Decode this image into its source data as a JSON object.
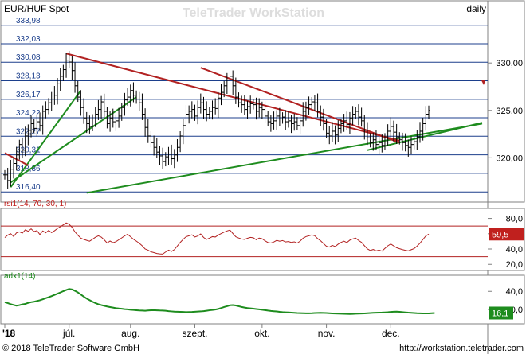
{
  "header": {
    "title": "EUR/HUF Spot",
    "watermark": "TeleTrader WorkStation",
    "period": "daily"
  },
  "footer": {
    "copyright": "© 2018 TeleTrader Software GmbH",
    "url": "http://workstation.teletrader.com"
  },
  "colors": {
    "price": "#000000",
    "green": "#1e8c1e",
    "red_trend": "#b22222",
    "rsi": "#b22222",
    "adx": "#1e8c1e",
    "level_line": "#1c3f8c",
    "badge_rsi": "#c0201e",
    "badge_adx": "#1e8c1e"
  },
  "chart_data": [
    {
      "type": "line",
      "title": "EUR/HUF Spot",
      "x_labels": [
        "'18",
        "júl.",
        "aug.",
        "szept.",
        "okt.",
        "nov.",
        "dec."
      ],
      "yticks_right": [
        "330,00",
        "325,00",
        "320,00"
      ],
      "ylim": [
        316.0,
        334.8
      ],
      "grid": false,
      "levels": [
        {
          "value": 333.98,
          "label": "333,98"
        },
        {
          "value": 332.03,
          "label": "332,03"
        },
        {
          "value": 330.08,
          "label": "330,08"
        },
        {
          "value": 328.13,
          "label": "328,13"
        },
        {
          "value": 326.17,
          "label": "326,17"
        },
        {
          "value": 324.22,
          "label": "324,22"
        },
        {
          "value": 322.27,
          "label": "322,27"
        },
        {
          "value": 320.31,
          "label": "320,31"
        },
        {
          "value": 318.36,
          "label": "318,36"
        },
        {
          "value": 316.4,
          "label": "316,40"
        }
      ],
      "series": [
        {
          "values": [
            318.2,
            317.6,
            318.8,
            319.4,
            320.3,
            321.4,
            320.8,
            322.3,
            322.9,
            323.6,
            323.1,
            323.8,
            323.4,
            324.9,
            325.1,
            325.8,
            326.2,
            326.6,
            327.8,
            328.6,
            329.3,
            330.3,
            330.1,
            329.2,
            327.6,
            326.4,
            325.3,
            324.2,
            323.6,
            323.3,
            324.1,
            324.6,
            325.1,
            325.9,
            324.9,
            323.6,
            324.2,
            323.8,
            323.9,
            324.4,
            325.3,
            326.1,
            326.4,
            327.1,
            326.6,
            326.2,
            325.8,
            324.6,
            323.2,
            322.3,
            321.6,
            321.1,
            320.6,
            320.2,
            319.6,
            320.1,
            320.4,
            319.9,
            320.3,
            321.1,
            322.3,
            323.4,
            324.6,
            324.9,
            325.1,
            324.4,
            325.3,
            325.8,
            325.1,
            324.6,
            324.9,
            325.3,
            325.2,
            326.3,
            326.9,
            327.6,
            328.2,
            328.6,
            327.6,
            326.4,
            325.8,
            325.6,
            325.1,
            325.4,
            325.7,
            325.6,
            324.9,
            325.3,
            325.1,
            324.4,
            323.8,
            323.6,
            323.9,
            324.4,
            324.1,
            324.3,
            323.8,
            323.9,
            323.6,
            323.8,
            323.4,
            323.9,
            324.9,
            325.3,
            325.6,
            325.9,
            325.8,
            324.9,
            324.3,
            323.6,
            322.6,
            322.3,
            322.8,
            322.4,
            323.1,
            323.6,
            323.9,
            323.5,
            324.2,
            324.6,
            324.9,
            324.3,
            323.9,
            322.9,
            322.1,
            321.6,
            321.9,
            321.4,
            321.6,
            321.3,
            322.1,
            322.8,
            323.3,
            322.7,
            322.2,
            321.9,
            321.6,
            321.3,
            321.1,
            321.4,
            321.7,
            322.2,
            322.8,
            323.6,
            324.6,
            325.0
          ]
        }
      ],
      "trendlines": [
        {
          "name": "green-support-main",
          "color": "green",
          "from": {
            "i": 28,
            "v": 316.3
          },
          "to": {
            "i": 163,
            "v": 323.6
          }
        },
        {
          "name": "green-support-short-1",
          "color": "green",
          "from": {
            "i": 2,
            "v": 316.9
          },
          "to": {
            "i": 26,
            "v": 327.1
          }
        },
        {
          "name": "green-support-short-2",
          "color": "green",
          "from": {
            "i": 2,
            "v": 317.4
          },
          "to": {
            "i": 45,
            "v": 326.4
          }
        },
        {
          "name": "green-support-right",
          "color": "green",
          "from": {
            "i": 124,
            "v": 320.8
          },
          "to": {
            "i": 163,
            "v": 323.7
          }
        },
        {
          "name": "red-resistance-left",
          "color": "red_trend",
          "from": {
            "i": 21,
            "v": 331.0
          },
          "to": {
            "i": 135,
            "v": 321.8
          }
        },
        {
          "name": "red-resistance-right",
          "color": "red_trend",
          "from": {
            "i": 67,
            "v": 329.5
          },
          "to": {
            "i": 135,
            "v": 321.6
          }
        },
        {
          "name": "red-resistance-start",
          "color": "red_trend",
          "from": {
            "i": 0,
            "v": 320.5
          },
          "to": {
            "i": 8,
            "v": 319.2
          }
        }
      ]
    },
    {
      "type": "line",
      "title": "rsi1(14, 70, 30, 1)",
      "yticks_right": [
        "80,0",
        "60,0",
        "40,0",
        "20,0"
      ],
      "ylim": [
        14,
        91
      ],
      "bands": [
        70,
        30
      ],
      "last_value": "59,5",
      "series": [
        {
          "values": [
            55.0,
            58.2,
            60.1,
            56.4,
            61.2,
            62.5,
            60.8,
            65.1,
            63.2,
            66.4,
            62.8,
            64.1,
            58.9,
            63.6,
            61.2,
            64.3,
            61.5,
            63.9,
            66.8,
            69.2,
            71.5,
            74.1,
            72.3,
            68.5,
            62.4,
            58.1,
            54.2,
            52.6,
            51.3,
            50.2,
            52.7,
            55.4,
            57.3,
            55.6,
            52.1,
            47.8,
            50.5,
            48.3,
            49.6,
            52.1,
            54.6,
            57.2,
            59.3,
            56.1,
            52.8,
            50.3,
            47.6,
            44.2,
            40.1,
            38.5,
            36.4,
            35.3,
            34.2,
            33.6,
            33.4,
            36.1,
            38.5,
            36.8,
            39.2,
            43.8,
            48.6,
            52.7,
            56.1,
            57.3,
            58.6,
            55.7,
            57.1,
            59.7,
            55.1,
            52.6,
            54.3,
            56.2,
            55.7,
            58.3,
            60.2,
            62.1,
            63.6,
            64.8,
            60.3,
            56.1,
            54.4,
            53.2,
            52.5,
            54.1,
            55.2,
            54.7,
            52.1,
            54.3,
            53.4,
            50.7,
            48.5,
            47.8,
            49.2,
            51.3,
            50.2,
            51.1,
            49.3,
            49.8,
            48.6,
            49.4,
            47.7,
            50.3,
            54.1,
            56.2,
            57.3,
            58.5,
            57.4,
            53.6,
            50.8,
            47.2,
            43.6,
            42.5,
            44.8,
            43.2,
            46.3,
            48.7,
            50.2,
            48.4,
            51.6,
            53.2,
            54.3,
            51.2,
            48.7,
            44.3,
            40.2,
            38.1,
            39.4,
            37.6,
            38.6,
            37.2,
            40.8,
            44.2,
            46.6,
            44.1,
            41.7,
            40.4,
            39.2,
            38.3,
            37.6,
            39.1,
            40.6,
            43.8,
            47.6,
            52.4,
            57.1,
            59.5
          ]
        }
      ]
    },
    {
      "type": "line",
      "title": "adx1(14)",
      "yticks_right": [
        "40,0",
        "20,0"
      ],
      "ylim": [
        6,
        56
      ],
      "last_value": "16,1",
      "series": [
        {
          "values": [
            28.0,
            27.1,
            25.9,
            25.0,
            24.2,
            24.8,
            25.6,
            26.2,
            27.3,
            28.1,
            28.6,
            29.4,
            30.2,
            31.3,
            32.5,
            33.6,
            34.8,
            36.1,
            37.4,
            38.8,
            40.2,
            41.5,
            42.6,
            42.1,
            40.6,
            38.8,
            36.5,
            34.2,
            32.1,
            30.3,
            28.6,
            27.1,
            25.8,
            24.9,
            24.1,
            23.3,
            22.7,
            22.1,
            21.5,
            21.1,
            20.8,
            20.4,
            20.1,
            19.7,
            19.5,
            19.2,
            18.9,
            18.8,
            18.6,
            18.9,
            19.2,
            19.3,
            19.1,
            18.9,
            18.8,
            18.6,
            18.2,
            17.9,
            17.6,
            17.5,
            17.4,
            17.3,
            17.1,
            17.2,
            17.3,
            17.5,
            17.7,
            17.9,
            18.2,
            18.6,
            19.1,
            19.5,
            19.9,
            20.6,
            21.6,
            22.7,
            23.6,
            24.6,
            24.9,
            24.4,
            23.6,
            22.8,
            22.1,
            21.6,
            21.3,
            20.9,
            20.5,
            20.1,
            19.7,
            19.3,
            18.8,
            18.4,
            18.1,
            17.8,
            17.4,
            17.1,
            16.9,
            16.7,
            16.5,
            16.3,
            16.1,
            16.0,
            15.9,
            15.8,
            15.8,
            15.9,
            16.1,
            16.2,
            16.3,
            16.2,
            16.1,
            15.9,
            15.7,
            15.5,
            15.4,
            15.3,
            15.2,
            15.1,
            15.0,
            15.1,
            15.3,
            15.4,
            15.5,
            15.7,
            15.9,
            16.1,
            16.3,
            16.4,
            16.5,
            16.6,
            16.8,
            17.0,
            17.3,
            17.5,
            17.6,
            17.4,
            17.1,
            16.8,
            16.5,
            16.3,
            16.1,
            15.9,
            15.8,
            15.7,
            15.6,
            15.7,
            15.9,
            16.1
          ]
        }
      ]
    }
  ]
}
